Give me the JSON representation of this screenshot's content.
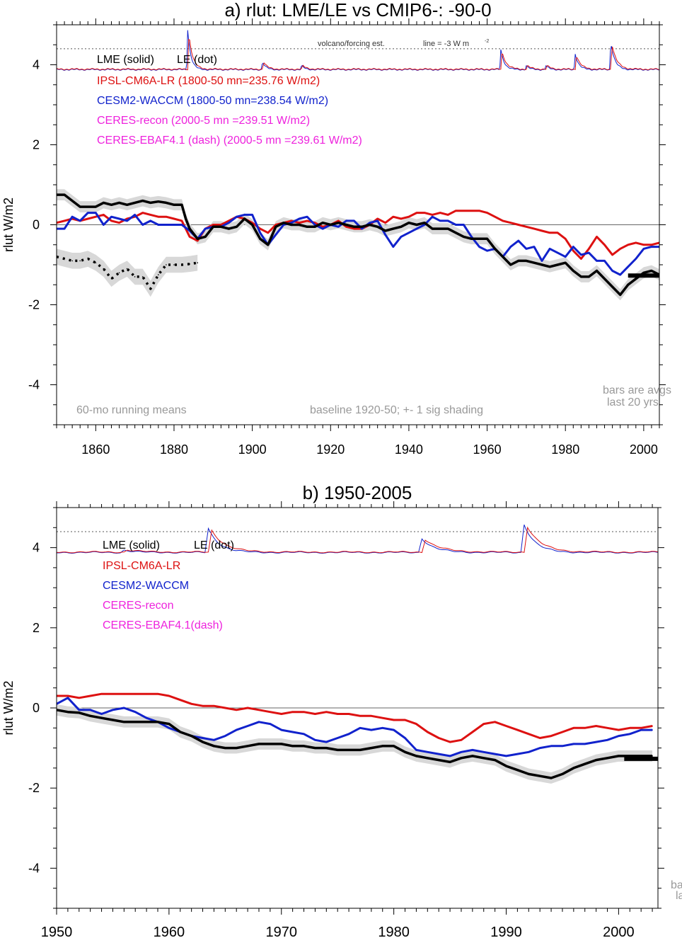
{
  "colors": {
    "lme": "#000000",
    "ipsl": "#dd1111",
    "cesm": "#1122cc",
    "ceres": "#ee22dd",
    "note": "#999999",
    "shade": "#d8d8d8"
  },
  "chart_data": [
    {
      "type": "line",
      "title": "a) rlut: LME/LE vs CMIP6-: -90-0",
      "ylabel": "rlut W/m2",
      "xlabel": "",
      "xlim": [
        1850,
        2004
      ],
      "ylim": [
        -5,
        5
      ],
      "xticks": [
        1860,
        1880,
        1900,
        1920,
        1940,
        1960,
        1980,
        2000
      ],
      "yticks": [
        -4,
        -2,
        0,
        2,
        4
      ],
      "grid": false,
      "legend": [
        "LME (solid)",
        "LE (dot)",
        "IPSL-CM6A-LR (1800-50 mn=235.76 W/m2)",
        "CESM2-WACCM (1800-50 mn=238.54 W/m2)",
        "CERES-recon (2000-5 mn =239.51 W/m2)",
        "CERES-EBAF4.1 (dash) (2000-5 mn =239.61 W/m2)"
      ],
      "legend_placement": "top-left",
      "annotations": [
        "volcano/forcing est.",
        "line = -3 W m",
        "-2",
        "60-mo running means",
        "baseline 1920-50; +- 1 sig shading",
        "bars are avgs",
        "last 20 yrs"
      ],
      "reference_lines": [
        {
          "y": 0,
          "style": "solid"
        },
        {
          "y": 4.4,
          "style": "dotted"
        }
      ],
      "series": [
        {
          "name": "LME (solid)",
          "color": "#000000",
          "style": "solid",
          "x": [
            1850,
            1852,
            1854,
            1856,
            1858,
            1860,
            1862,
            1864,
            1866,
            1868,
            1870,
            1872,
            1874,
            1876,
            1878,
            1880,
            1882,
            1883,
            1884,
            1886,
            1888,
            1890,
            1892,
            1894,
            1896,
            1898,
            1900,
            1902,
            1904,
            1906,
            1908,
            1910,
            1912,
            1914,
            1916,
            1918,
            1920,
            1922,
            1924,
            1926,
            1928,
            1930,
            1932,
            1934,
            1936,
            1938,
            1940,
            1942,
            1944,
            1946,
            1948,
            1950,
            1952,
            1954,
            1956,
            1958,
            1960,
            1962,
            1964,
            1966,
            1968,
            1970,
            1972,
            1974,
            1976,
            1978,
            1980,
            1982,
            1984,
            1986,
            1988,
            1990,
            1992,
            1994,
            1996,
            1998,
            2000,
            2002,
            2004
          ],
          "y": [
            0.75,
            0.75,
            0.6,
            0.45,
            0.45,
            0.45,
            0.55,
            0.5,
            0.55,
            0.5,
            0.55,
            0.6,
            0.55,
            0.58,
            0.55,
            0.5,
            0.5,
            0.15,
            -0.1,
            -0.35,
            -0.3,
            -0.05,
            -0.05,
            -0.1,
            -0.05,
            0.15,
            0.0,
            -0.35,
            -0.5,
            -0.05,
            0.05,
            0.0,
            0.0,
            -0.05,
            -0.05,
            0.05,
            0.0,
            0.05,
            0.0,
            -0.05,
            -0.05,
            0.0,
            -0.05,
            -0.15,
            -0.1,
            -0.05,
            0.05,
            0.0,
            0.05,
            -0.1,
            -0.1,
            -0.1,
            -0.2,
            -0.3,
            -0.35,
            -0.35,
            -0.35,
            -0.6,
            -0.8,
            -1.0,
            -0.9,
            -0.9,
            -0.95,
            -1.0,
            -1.05,
            -1.0,
            -0.95,
            -1.15,
            -1.3,
            -1.3,
            -1.15,
            -1.35,
            -1.55,
            -1.75,
            -1.5,
            -1.35,
            -1.2,
            -1.15,
            -1.25
          ]
        },
        {
          "name": "LE (dot)",
          "color": "#000000",
          "style": "dotted",
          "x": [
            1850,
            1852,
            1854,
            1856,
            1858,
            1860,
            1862,
            1864,
            1866,
            1868,
            1870,
            1872,
            1874,
            1876,
            1878,
            1880,
            1882,
            1884,
            1886
          ],
          "y": [
            -0.8,
            -0.85,
            -0.9,
            -0.9,
            -0.85,
            -0.95,
            -1.1,
            -1.35,
            -1.2,
            -1.1,
            -1.3,
            -1.3,
            -1.6,
            -1.25,
            -1.0,
            -1.0,
            -1.0,
            -0.98,
            -0.95
          ]
        },
        {
          "name": "IPSL-CM6A-LR",
          "color": "#dd1111",
          "style": "solid",
          "x": [
            1850,
            1852,
            1854,
            1856,
            1858,
            1860,
            1862,
            1864,
            1866,
            1868,
            1870,
            1872,
            1874,
            1876,
            1878,
            1880,
            1882,
            1884,
            1886,
            1888,
            1890,
            1892,
            1894,
            1896,
            1898,
            1900,
            1902,
            1904,
            1906,
            1908,
            1910,
            1912,
            1914,
            1916,
            1918,
            1920,
            1922,
            1924,
            1926,
            1928,
            1930,
            1932,
            1934,
            1936,
            1938,
            1940,
            1942,
            1944,
            1946,
            1948,
            1950,
            1952,
            1954,
            1956,
            1958,
            1960,
            1962,
            1964,
            1966,
            1968,
            1970,
            1972,
            1974,
            1976,
            1978,
            1980,
            1982,
            1984,
            1986,
            1988,
            1990,
            1992,
            1994,
            1996,
            1998,
            2000,
            2002,
            2004
          ],
          "y": [
            0.05,
            0.1,
            0.15,
            0.1,
            0.15,
            0.2,
            0.25,
            0.1,
            0.05,
            0.15,
            0.2,
            0.3,
            0.25,
            0.2,
            0.2,
            0.15,
            0.1,
            -0.3,
            -0.4,
            -0.1,
            0.0,
            0.0,
            0.1,
            0.2,
            0.15,
            0.05,
            -0.1,
            -0.2,
            0.0,
            0.05,
            0.1,
            0.05,
            0.1,
            0.05,
            -0.05,
            0.0,
            0.1,
            -0.05,
            -0.1,
            -0.1,
            0.0,
            0.15,
            0.05,
            0.2,
            0.15,
            0.2,
            0.3,
            0.3,
            0.25,
            0.3,
            0.25,
            0.35,
            0.35,
            0.35,
            0.35,
            0.3,
            0.2,
            0.1,
            0.05,
            0.0,
            -0.05,
            -0.1,
            -0.15,
            -0.2,
            -0.2,
            -0.35,
            -0.65,
            -0.85,
            -0.6,
            -0.3,
            -0.5,
            -0.75,
            -0.6,
            -0.5,
            -0.45,
            -0.5,
            -0.5,
            -0.45
          ]
        },
        {
          "name": "CESM2-WACCM",
          "color": "#1122cc",
          "style": "solid",
          "x": [
            1850,
            1852,
            1854,
            1856,
            1858,
            1860,
            1862,
            1864,
            1866,
            1868,
            1870,
            1872,
            1874,
            1876,
            1878,
            1880,
            1882,
            1884,
            1886,
            1888,
            1890,
            1892,
            1894,
            1896,
            1898,
            1900,
            1902,
            1904,
            1906,
            1908,
            1910,
            1912,
            1914,
            1916,
            1918,
            1920,
            1922,
            1924,
            1926,
            1928,
            1930,
            1932,
            1934,
            1936,
            1938,
            1940,
            1942,
            1944,
            1946,
            1948,
            1950,
            1952,
            1954,
            1956,
            1958,
            1960,
            1962,
            1964,
            1966,
            1968,
            1970,
            1972,
            1974,
            1976,
            1978,
            1980,
            1982,
            1984,
            1986,
            1988,
            1990,
            1992,
            1994,
            1996,
            1998,
            2000,
            2002,
            2004
          ],
          "y": [
            -0.1,
            -0.1,
            0.2,
            0.1,
            0.3,
            0.3,
            0.0,
            0.2,
            0.15,
            0.1,
            0.25,
            0.0,
            0.1,
            0.0,
            0.0,
            0.0,
            0.0,
            -0.15,
            -0.35,
            -0.1,
            -0.05,
            -0.05,
            0.05,
            0.2,
            0.25,
            0.25,
            -0.2,
            -0.5,
            -0.25,
            0.0,
            0.05,
            0.15,
            0.2,
            0.0,
            -0.1,
            0.0,
            -0.05,
            0.1,
            0.1,
            -0.1,
            0.05,
            0.1,
            -0.25,
            -0.55,
            -0.3,
            -0.2,
            -0.1,
            0.0,
            0.2,
            0.1,
            0.1,
            0.0,
            0.0,
            -0.3,
            -0.55,
            -0.65,
            -0.6,
            -0.8,
            -0.55,
            -0.4,
            -0.6,
            -0.55,
            -0.9,
            -0.6,
            -0.7,
            -0.8,
            -0.55,
            -0.75,
            -0.7,
            -0.9,
            -0.9,
            -1.15,
            -1.25,
            -1.05,
            -0.85,
            -0.6,
            -0.55,
            -0.55
          ]
        }
      ],
      "bars": [
        {
          "name": "LME (solid)",
          "x": [
            1996,
            2004
          ],
          "y": -1.27
        }
      ]
    },
    {
      "type": "line",
      "title": "b) 1950-2005",
      "ylabel": "rlut W/m2",
      "xlabel": "",
      "xlim": [
        1950,
        2003.5
      ],
      "ylim": [
        -5,
        5
      ],
      "xticks": [
        1950,
        1960,
        1970,
        1980,
        1990,
        2000
      ],
      "yticks": [
        -4,
        -2,
        0,
        2,
        4
      ],
      "grid": false,
      "legend": [
        "LME (solid)",
        "LE (dot)",
        "IPSL-CM6A-LR",
        "CESM2-WACCM",
        "CERES-recon",
        "CERES-EBAF4.1(dash)"
      ],
      "legend_placement": "top-left",
      "annotations": [
        "ba",
        "la"
      ],
      "reference_lines": [
        {
          "y": 0,
          "style": "solid"
        },
        {
          "y": 4.4,
          "style": "dotted"
        }
      ],
      "series": [
        {
          "name": "LME (solid)",
          "color": "#000000",
          "style": "solid",
          "x": [
            1950,
            1951,
            1952,
            1953,
            1954,
            1955,
            1956,
            1957,
            1958,
            1959,
            1960,
            1961,
            1962,
            1963,
            1964,
            1965,
            1966,
            1967,
            1968,
            1969,
            1970,
            1971,
            1972,
            1973,
            1974,
            1975,
            1976,
            1977,
            1978,
            1979,
            1980,
            1981,
            1982,
            1983,
            1984,
            1985,
            1986,
            1987,
            1988,
            1989,
            1990,
            1991,
            1992,
            1993,
            1994,
            1995,
            1996,
            1997,
            1998,
            1999,
            2000,
            2001,
            2002,
            2003
          ],
          "y": [
            -0.05,
            -0.1,
            -0.12,
            -0.2,
            -0.25,
            -0.3,
            -0.35,
            -0.35,
            -0.35,
            -0.35,
            -0.4,
            -0.6,
            -0.7,
            -0.85,
            -0.95,
            -1.0,
            -1.0,
            -0.95,
            -0.9,
            -0.9,
            -0.9,
            -0.95,
            -0.95,
            -1.0,
            -1.0,
            -1.05,
            -1.05,
            -1.05,
            -1.0,
            -0.95,
            -0.95,
            -1.1,
            -1.2,
            -1.25,
            -1.3,
            -1.35,
            -1.25,
            -1.2,
            -1.25,
            -1.3,
            -1.45,
            -1.55,
            -1.65,
            -1.7,
            -1.75,
            -1.65,
            -1.5,
            -1.4,
            -1.3,
            -1.25,
            -1.2,
            -1.2,
            -1.2,
            -1.2
          ]
        },
        {
          "name": "IPSL-CM6A-LR",
          "color": "#dd1111",
          "style": "solid",
          "x": [
            1950,
            1951,
            1952,
            1953,
            1954,
            1955,
            1956,
            1957,
            1958,
            1959,
            1960,
            1961,
            1962,
            1963,
            1964,
            1965,
            1966,
            1967,
            1968,
            1969,
            1970,
            1971,
            1972,
            1973,
            1974,
            1975,
            1976,
            1977,
            1978,
            1979,
            1980,
            1981,
            1982,
            1983,
            1984,
            1985,
            1986,
            1987,
            1988,
            1989,
            1990,
            1991,
            1992,
            1993,
            1994,
            1995,
            1996,
            1997,
            1998,
            1999,
            2000,
            2001,
            2002,
            2003
          ],
          "y": [
            0.3,
            0.3,
            0.25,
            0.3,
            0.35,
            0.35,
            0.35,
            0.35,
            0.35,
            0.35,
            0.3,
            0.2,
            0.1,
            0.05,
            0.05,
            0.0,
            -0.05,
            0.0,
            -0.05,
            -0.1,
            -0.15,
            -0.1,
            -0.1,
            -0.15,
            -0.1,
            -0.15,
            -0.15,
            -0.2,
            -0.2,
            -0.25,
            -0.3,
            -0.3,
            -0.4,
            -0.6,
            -0.75,
            -0.85,
            -0.8,
            -0.6,
            -0.4,
            -0.35,
            -0.45,
            -0.55,
            -0.65,
            -0.75,
            -0.7,
            -0.6,
            -0.5,
            -0.5,
            -0.45,
            -0.5,
            -0.55,
            -0.5,
            -0.5,
            -0.45
          ]
        },
        {
          "name": "CESM2-WACCM",
          "color": "#1122cc",
          "style": "solid",
          "x": [
            1950,
            1951,
            1952,
            1953,
            1954,
            1955,
            1956,
            1957,
            1958,
            1959,
            1960,
            1961,
            1962,
            1963,
            1964,
            1965,
            1966,
            1967,
            1968,
            1969,
            1970,
            1971,
            1972,
            1973,
            1974,
            1975,
            1976,
            1977,
            1978,
            1979,
            1980,
            1981,
            1982,
            1983,
            1984,
            1985,
            1986,
            1987,
            1988,
            1989,
            1990,
            1991,
            1992,
            1993,
            1994,
            1995,
            1996,
            1997,
            1998,
            1999,
            2000,
            2001,
            2002,
            2003
          ],
          "y": [
            0.1,
            0.25,
            -0.05,
            -0.05,
            -0.15,
            -0.05,
            0.0,
            -0.1,
            -0.25,
            -0.35,
            -0.5,
            -0.6,
            -0.7,
            -0.75,
            -0.8,
            -0.7,
            -0.55,
            -0.45,
            -0.35,
            -0.4,
            -0.55,
            -0.6,
            -0.65,
            -0.8,
            -0.85,
            -0.75,
            -0.65,
            -0.5,
            -0.55,
            -0.5,
            -0.55,
            -0.75,
            -1.05,
            -1.1,
            -1.15,
            -1.2,
            -1.1,
            -1.05,
            -1.1,
            -1.15,
            -1.2,
            -1.15,
            -1.1,
            -1.0,
            -0.95,
            -0.95,
            -0.9,
            -0.9,
            -0.85,
            -0.8,
            -0.7,
            -0.65,
            -0.55,
            -0.55
          ]
        }
      ],
      "bars": [
        {
          "name": "LME (solid)",
          "x": [
            2000.5,
            2003.5
          ],
          "y": -1.27
        }
      ]
    }
  ]
}
